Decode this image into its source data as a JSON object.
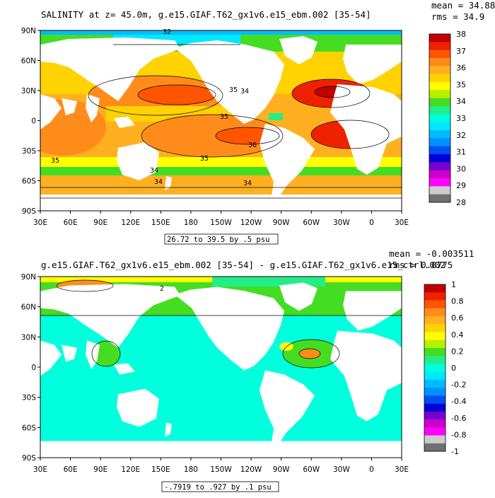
{
  "panels": [
    {
      "title": "SALINITY at z=  45.0m, g.e15.GIAF.T62_gx1v6.e15_ebm.002 [35-54]",
      "stats": {
        "mean": "mean = 34.88",
        "rms": "rms = 34.9"
      },
      "range_label": "26.72 to 39.5 by .5 psu",
      "contour_labels": [
        "32",
        "34",
        "35",
        "35",
        "36",
        "35",
        "35",
        "34",
        "34",
        "34"
      ],
      "colorbar": {
        "labels": [
          "38",
          "37",
          "36",
          "35",
          "34",
          "33",
          "32",
          "31",
          "30",
          "29",
          "28"
        ],
        "colors": [
          "#c00000",
          "#ee2200",
          "#ff5500",
          "#ff8c1a",
          "#ffb020",
          "#ffd200",
          "#ffff00",
          "#b8f000",
          "#44dd22",
          "#22ee88",
          "#00ffdd",
          "#00e8ff",
          "#00bcff",
          "#0090ff",
          "#0050f0",
          "#0000d8",
          "#7700cc",
          "#cc00cc",
          "#ff00ff",
          "#cccccc",
          "#707070"
        ]
      }
    },
    {
      "title": "g.e15.GIAF.T62_gx1v6.e15_ebm.002 [35-54] - g.e15.GIAF.T62_gx1v6.e15_ctrl.002",
      "stats": {
        "mean": "mean = -0.003511",
        "rms": "rms = 0.0775"
      },
      "range_label": "-.7919 to .927 by .1 psu",
      "contour_labels": [
        "2"
      ],
      "colorbar": {
        "labels": [
          "1",
          "0.8",
          "0.6",
          "0.4",
          "0.2",
          "0",
          "-0.2",
          "-0.4",
          "-0.6",
          "-0.8",
          "-1"
        ],
        "colors": [
          "#c00000",
          "#ee2200",
          "#ff5500",
          "#ff8c1a",
          "#ffb020",
          "#ffd200",
          "#ffff00",
          "#b8f000",
          "#44dd22",
          "#22ee88",
          "#00ffdd",
          "#00e8ff",
          "#00bcff",
          "#0090ff",
          "#0050f0",
          "#0000d8",
          "#7700cc",
          "#cc00cc",
          "#ff00ff",
          "#cccccc",
          "#707070"
        ]
      }
    }
  ],
  "lat_ticks": [
    "90N",
    "60N",
    "30N",
    "0",
    "30S",
    "60S",
    "90S"
  ],
  "lon_ticks": [
    "30E",
    "60E",
    "90E",
    "120E",
    "150E",
    "180",
    "150W",
    "120W",
    "90W",
    "60W",
    "30W",
    "0",
    "30E"
  ]
}
